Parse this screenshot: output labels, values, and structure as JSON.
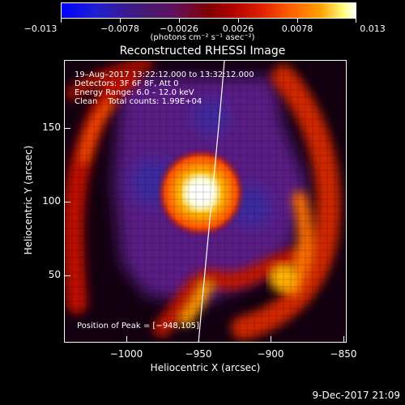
{
  "colorbar": {
    "labels": [
      "−0.013",
      "−0.0078",
      "−0.0026",
      "0.0026",
      "0.0078",
      "0.013"
    ],
    "units": "(photons cm⁻² s⁻¹ asec⁻²)"
  },
  "title": "Reconstructed RHESSI Image",
  "annotations": {
    "line1": "19–Aug–2017 13:22:12.000 to 13:32:12.000",
    "line2": "Detectors: 3F 6F 8F, Att 0",
    "line3": "Energy Range: 6.0 – 12.0 keV",
    "line4": "Clean    Total counts: 1.99E+04",
    "peak": "Position of Peak = [−948,105]"
  },
  "axes": {
    "xlabel": "Heliocentric X (arcsec)",
    "ylabel": "Heliocentric Y (arcsec)",
    "xticks": [
      "−1000",
      "−950",
      "−900",
      "−850"
    ],
    "yticks": [
      "150",
      "100",
      "50"
    ]
  },
  "date_stamp": "9-Dec-2017 21:09"
}
